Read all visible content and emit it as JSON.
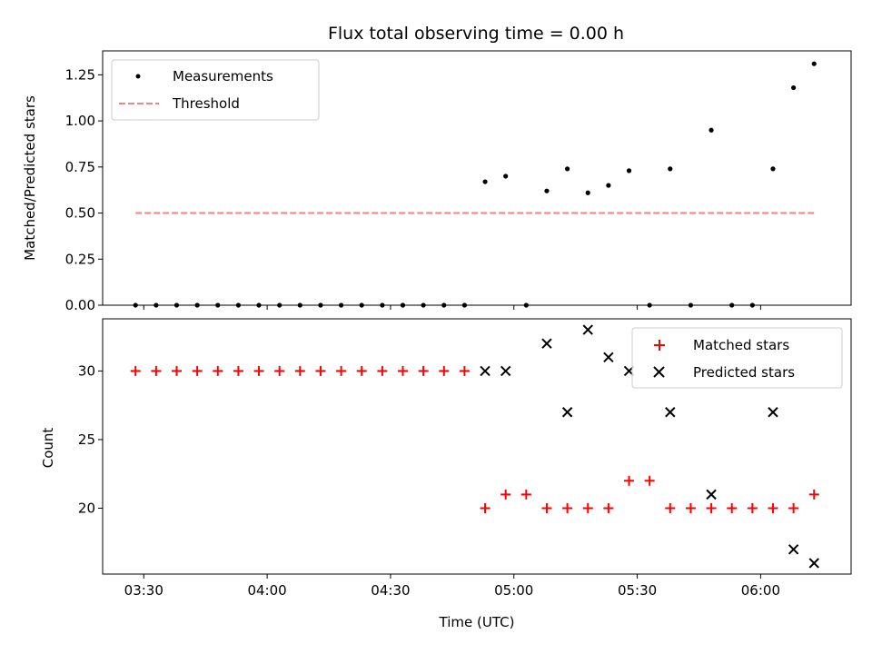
{
  "chart_data": [
    {
      "type": "scatter",
      "title": "Flux total observing time = 0.00 h",
      "xlabel": "",
      "ylabel": "Matched/Predicted stars",
      "ylim": [
        0,
        1.38
      ],
      "yticks": [
        "0.00",
        "0.25",
        "0.50",
        "0.75",
        "1.00",
        "1.25"
      ],
      "ytick_values": [
        0,
        0.25,
        0.5,
        0.75,
        1.0,
        1.25
      ],
      "xlim": [
        "03:20",
        "06:22"
      ],
      "grid": false,
      "legend_position": "top-left",
      "series": [
        {
          "name": "Measurements",
          "style": "dot",
          "color": "#000000",
          "points": [
            [
              "03:28",
              0
            ],
            [
              "03:33",
              0
            ],
            [
              "03:38",
              0
            ],
            [
              "03:43",
              0
            ],
            [
              "03:48",
              0
            ],
            [
              "03:53",
              0
            ],
            [
              "03:58",
              0
            ],
            [
              "04:03",
              0
            ],
            [
              "04:08",
              0
            ],
            [
              "04:13",
              0
            ],
            [
              "04:18",
              0
            ],
            [
              "04:23",
              0
            ],
            [
              "04:28",
              0
            ],
            [
              "04:33",
              0
            ],
            [
              "04:38",
              0
            ],
            [
              "04:43",
              0
            ],
            [
              "04:48",
              0
            ],
            [
              "04:53",
              0.67
            ],
            [
              "04:58",
              0.7
            ],
            [
              "05:03",
              0
            ],
            [
              "05:08",
              0.62
            ],
            [
              "05:13",
              0.74
            ],
            [
              "05:18",
              0.61
            ],
            [
              "05:23",
              0.65
            ],
            [
              "05:28",
              0.73
            ],
            [
              "05:33",
              0
            ],
            [
              "05:38",
              0.74
            ],
            [
              "05:43",
              0
            ],
            [
              "05:48",
              0.95
            ],
            [
              "05:53",
              0
            ],
            [
              "05:58",
              0
            ],
            [
              "06:03",
              0.74
            ],
            [
              "06:08",
              1.18
            ],
            [
              "06:13",
              1.31
            ]
          ]
        },
        {
          "name": "Threshold",
          "style": "dashed-line",
          "color": "#ff7f7f",
          "points": [
            [
              "03:28",
              0.5
            ],
            [
              "06:13",
              0.5
            ]
          ]
        }
      ]
    },
    {
      "type": "scatter",
      "title": "",
      "xlabel": "Time (UTC)",
      "ylabel": "Count",
      "ylim": [
        15.2,
        33.8
      ],
      "yticks": [
        "20",
        "25",
        "30"
      ],
      "ytick_values": [
        20,
        25,
        30
      ],
      "xlim": [
        "03:20",
        "06:22"
      ],
      "xticks": [
        "03:30",
        "04:00",
        "04:30",
        "05:00",
        "05:30",
        "06:00"
      ],
      "grid": false,
      "legend_position": "top-right",
      "series": [
        {
          "name": "Matched stars",
          "style": "plus",
          "color": "#ff0000",
          "points": [
            [
              "03:28",
              30
            ],
            [
              "03:33",
              30
            ],
            [
              "03:38",
              30
            ],
            [
              "03:43",
              30
            ],
            [
              "03:48",
              30
            ],
            [
              "03:53",
              30
            ],
            [
              "03:58",
              30
            ],
            [
              "04:03",
              30
            ],
            [
              "04:08",
              30
            ],
            [
              "04:13",
              30
            ],
            [
              "04:18",
              30
            ],
            [
              "04:23",
              30
            ],
            [
              "04:28",
              30
            ],
            [
              "04:33",
              30
            ],
            [
              "04:38",
              30
            ],
            [
              "04:43",
              30
            ],
            [
              "04:48",
              30
            ],
            [
              "04:53",
              20
            ],
            [
              "04:58",
              21
            ],
            [
              "05:03",
              21
            ],
            [
              "05:08",
              20
            ],
            [
              "05:13",
              20
            ],
            [
              "05:18",
              20
            ],
            [
              "05:23",
              20
            ],
            [
              "05:28",
              22
            ],
            [
              "05:33",
              22
            ],
            [
              "05:38",
              20
            ],
            [
              "05:43",
              20
            ],
            [
              "05:48",
              20
            ],
            [
              "05:53",
              20
            ],
            [
              "05:58",
              20
            ],
            [
              "06:03",
              20
            ],
            [
              "06:08",
              20
            ],
            [
              "06:13",
              21
            ]
          ]
        },
        {
          "name": "Predicted stars",
          "style": "x",
          "color": "#000000",
          "points": [
            [
              "04:53",
              30
            ],
            [
              "04:58",
              30
            ],
            [
              "05:08",
              32
            ],
            [
              "05:13",
              27
            ],
            [
              "05:18",
              33
            ],
            [
              "05:23",
              31
            ],
            [
              "05:28",
              30
            ],
            [
              "05:38",
              27
            ],
            [
              "05:48",
              21
            ],
            [
              "06:03",
              27
            ],
            [
              "06:08",
              17
            ],
            [
              "06:13",
              16
            ]
          ]
        }
      ]
    }
  ]
}
